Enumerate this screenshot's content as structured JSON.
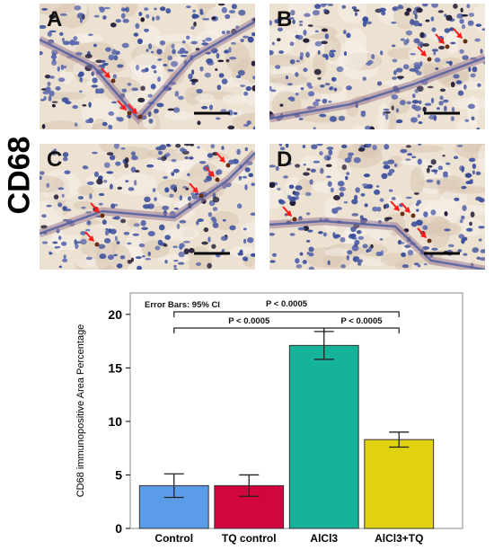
{
  "stain_label": "CD68",
  "panels": [
    {
      "letter": "A"
    },
    {
      "letter": "B"
    },
    {
      "letter": "C"
    },
    {
      "letter": "D"
    }
  ],
  "chart_data": {
    "type": "bar",
    "categories": [
      "Control",
      "TQ control",
      "AlCl3",
      "AlCl3+TQ"
    ],
    "values": [
      4.0,
      4.0,
      17.1,
      8.3
    ],
    "ci_low": [
      2.9,
      3.0,
      15.8,
      7.6
    ],
    "ci_high": [
      5.1,
      5.0,
      18.4,
      9.0
    ],
    "colors": [
      "#5b9ce8",
      "#d2063c",
      "#14b39a",
      "#e0d20e"
    ],
    "ylabel": "CD68 immunopositive Area Percentage",
    "ylim": [
      0,
      22
    ],
    "yticks": [
      0,
      5,
      10,
      15,
      20
    ],
    "grid": false,
    "annotation": "Error Bars: 95% CI",
    "comparisons": [
      {
        "from": 0,
        "to": 2,
        "label": "P < 0.0005"
      },
      {
        "from": 2,
        "to": 3,
        "label": "P < 0.0005"
      },
      {
        "from": 0,
        "to": 3,
        "label": "P < 0.0005"
      }
    ]
  }
}
